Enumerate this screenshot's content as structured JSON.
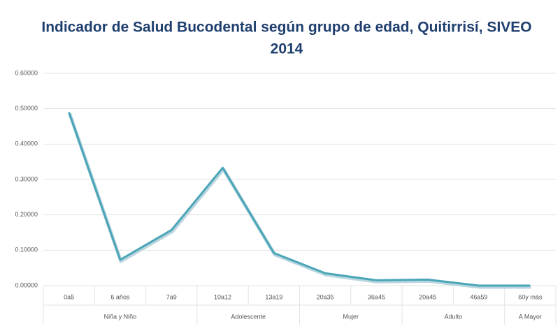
{
  "chart_data": {
    "type": "line",
    "title": [
      "Indicador de Salud Bucodental según grupo de edad, Quitirrisí, SIVEO",
      "2014"
    ],
    "groups": [
      {
        "name": "Niña y Niño",
        "categories": [
          "0a5",
          "6 años",
          "7a9"
        ]
      },
      {
        "name": "Adolescente",
        "categories": [
          "10a12",
          "13a19"
        ]
      },
      {
        "name": "Mujer",
        "categories": [
          "20a35",
          "36a45"
        ]
      },
      {
        "name": "Adulto",
        "categories": [
          "20a45",
          "46a59"
        ]
      },
      {
        "name": "A Mayor",
        "categories": [
          "60y más"
        ]
      }
    ],
    "values": [
      0.49,
      0.073,
      0.157,
      0.333,
      0.092,
      0.035,
      0.015,
      0.017,
      0.0,
      0.0
    ],
    "color": "#4aa5b8",
    "ylim": [
      0,
      0.6
    ],
    "yticks": [
      {
        "value": 0,
        "label": "0.00000"
      },
      {
        "value": 0.1,
        "label": "0.10000"
      },
      {
        "value": 0.2,
        "label": "0.20000"
      },
      {
        "value": 0.3,
        "label": "0.30000"
      },
      {
        "value": 0.4,
        "label": "0.40000"
      },
      {
        "value": 0.5,
        "label": "0.50000"
      },
      {
        "value": 0.6,
        "label": "0.60000"
      }
    ],
    "grid": true
  }
}
